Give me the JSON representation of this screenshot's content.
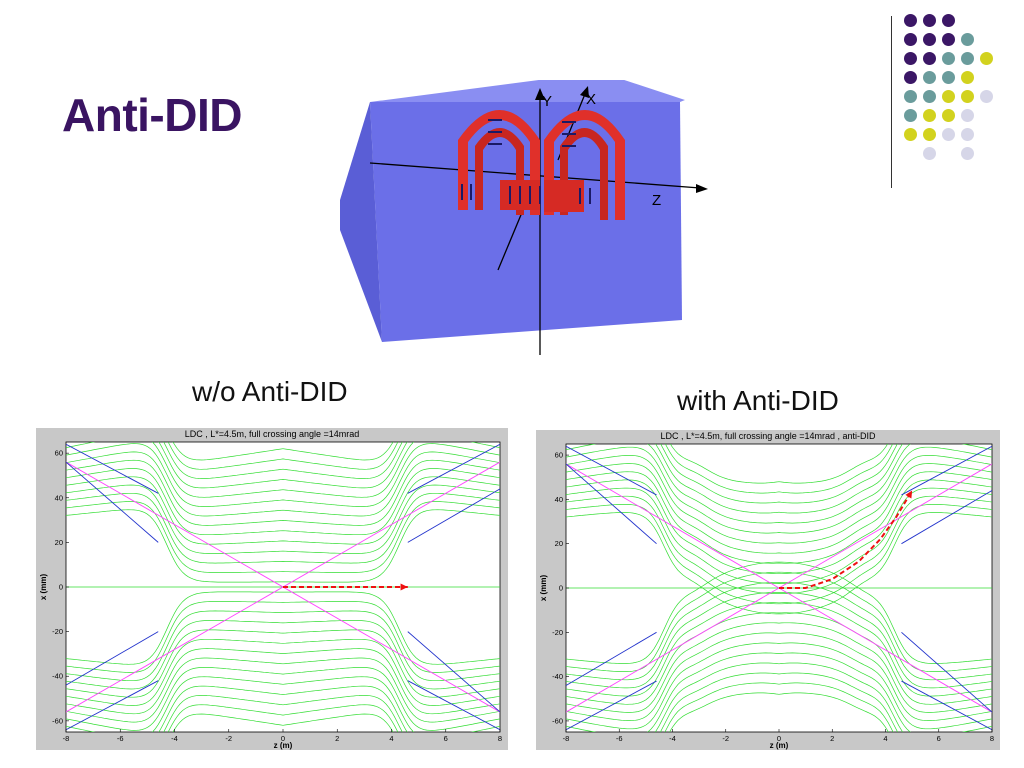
{
  "slide": {
    "title": "Anti-DID",
    "caption_left": "w/o Anti-DID",
    "caption_right": "with Anti-DID",
    "accent_color": "#3a1462"
  },
  "illustration": {
    "axis_y_label": "Y",
    "axis_x_label": "X",
    "axis_z_label": "Z",
    "block_color": "#6b6fe8",
    "coil_color": "#e0302a"
  },
  "dots_palette": [
    "#3b1766",
    "#6a9c9c",
    "#d2d21e",
    "#d6d6e8"
  ],
  "chart_data": [
    {
      "type": "line",
      "title": "LDC , L*=4.5m,  full crossing angle =14mrad",
      "xlabel": "z (m)",
      "ylabel": "x (mm)",
      "xlim": [
        -8,
        8
      ],
      "ylim": [
        -65,
        65
      ],
      "xticks": [
        "-8",
        "-6",
        "-4",
        "-2",
        "0",
        "2",
        "4",
        "6",
        "8"
      ],
      "yticks": [
        "60",
        "40",
        "20",
        "0",
        "-20",
        "-40",
        "-60"
      ],
      "field_lines_color": "#33dd33",
      "beam_lines_color": "#ff44ff",
      "detector_lines_color": "#2233cc",
      "arrow_color": "#ee1111",
      "anti_did": false,
      "beam_lines": [
        {
          "x": [
            -8,
            8
          ],
          "y": [
            56,
            -56
          ]
        },
        {
          "x": [
            -8,
            8
          ],
          "y": [
            -56,
            56
          ]
        }
      ],
      "arrow": {
        "x": [
          0,
          4.6
        ],
        "y": [
          0,
          0
        ]
      }
    },
    {
      "type": "line",
      "title": "LDC , L*=4.5m,  full crossing angle =14mrad , anti-DID",
      "xlabel": "z (m)",
      "ylabel": "x (mm)",
      "xlim": [
        -8,
        8
      ],
      "ylim": [
        -65,
        65
      ],
      "xticks": [
        "-8",
        "-6",
        "-4",
        "-2",
        "0",
        "2",
        "4",
        "6",
        "8"
      ],
      "yticks": [
        "60",
        "40",
        "20",
        "0",
        "-20",
        "-40",
        "-60"
      ],
      "field_lines_color": "#33dd33",
      "beam_lines_color": "#ff44ff",
      "detector_lines_color": "#2233cc",
      "arrow_color": "#ee1111",
      "anti_did": true,
      "beam_lines": [
        {
          "x": [
            -8,
            8
          ],
          "y": [
            56,
            -56
          ]
        },
        {
          "x": [
            -8,
            8
          ],
          "y": [
            -56,
            56
          ]
        }
      ],
      "arrow": {
        "x": [
          0,
          1,
          2,
          3,
          3.8,
          4.4,
          5.0
        ],
        "y": [
          0,
          0,
          4,
          12,
          22,
          32,
          44
        ]
      }
    }
  ]
}
